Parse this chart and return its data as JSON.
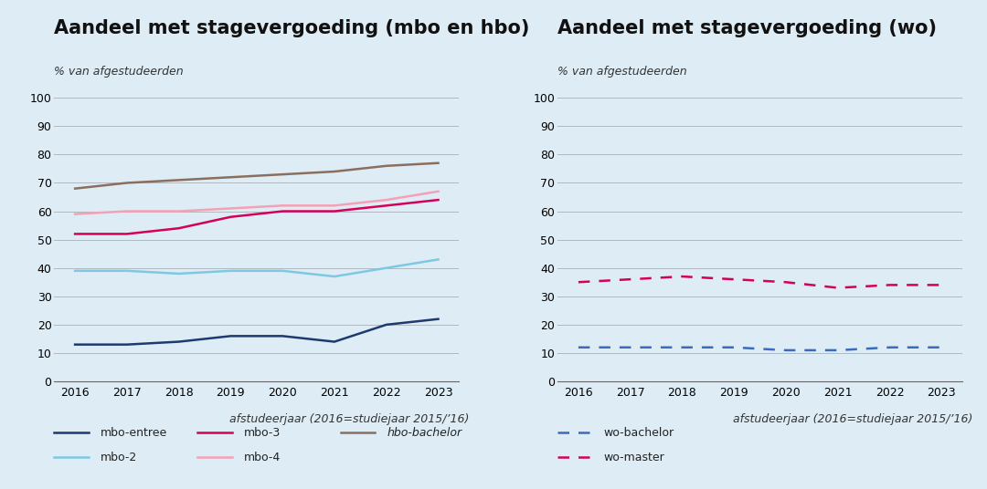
{
  "years": [
    2016,
    2017,
    2018,
    2019,
    2020,
    2021,
    2022,
    2023
  ],
  "left_title": "Aandeel met stagevergoeding (mbo en hbo)",
  "right_title": "Aandeel met stagevergoeding (wo)",
  "subtitle": "% van afgestudeerden",
  "xlabel": "afstudeerjaar (2016=studiejaar 2015/’16)",
  "mbo_entree": [
    13,
    13,
    14,
    16,
    16,
    14,
    20,
    22
  ],
  "mbo_entree_color": "#1e3a6e",
  "mbo2": [
    39,
    39,
    38,
    39,
    39,
    37,
    40,
    43
  ],
  "mbo2_color": "#7ec8e3",
  "mbo3": [
    52,
    52,
    54,
    58,
    60,
    60,
    62,
    64
  ],
  "mbo3_color": "#d4005a",
  "mbo4": [
    59,
    60,
    60,
    61,
    62,
    62,
    64,
    67
  ],
  "mbo4_color": "#f4a0b5",
  "hbo_bachelor": [
    68,
    70,
    71,
    72,
    73,
    74,
    76,
    77
  ],
  "hbo_bachelor_color": "#8b6f5e",
  "wo_bachelor": [
    12,
    12,
    12,
    12,
    11,
    11,
    12,
    12
  ],
  "wo_bachelor_color": "#3a6bbf",
  "wo_master": [
    35,
    36,
    37,
    36,
    35,
    33,
    34,
    34
  ],
  "wo_master_color": "#d4005a",
  "ylim": [
    0,
    100
  ],
  "yticks": [
    0,
    10,
    20,
    30,
    40,
    50,
    60,
    70,
    80,
    90,
    100
  ],
  "background_color": "#deedf5",
  "grid_color": "#b0b8c0",
  "title_fontsize": 15,
  "subtitle_fontsize": 9,
  "tick_fontsize": 9,
  "legend_fontsize": 9,
  "xlabel_fontsize": 9
}
